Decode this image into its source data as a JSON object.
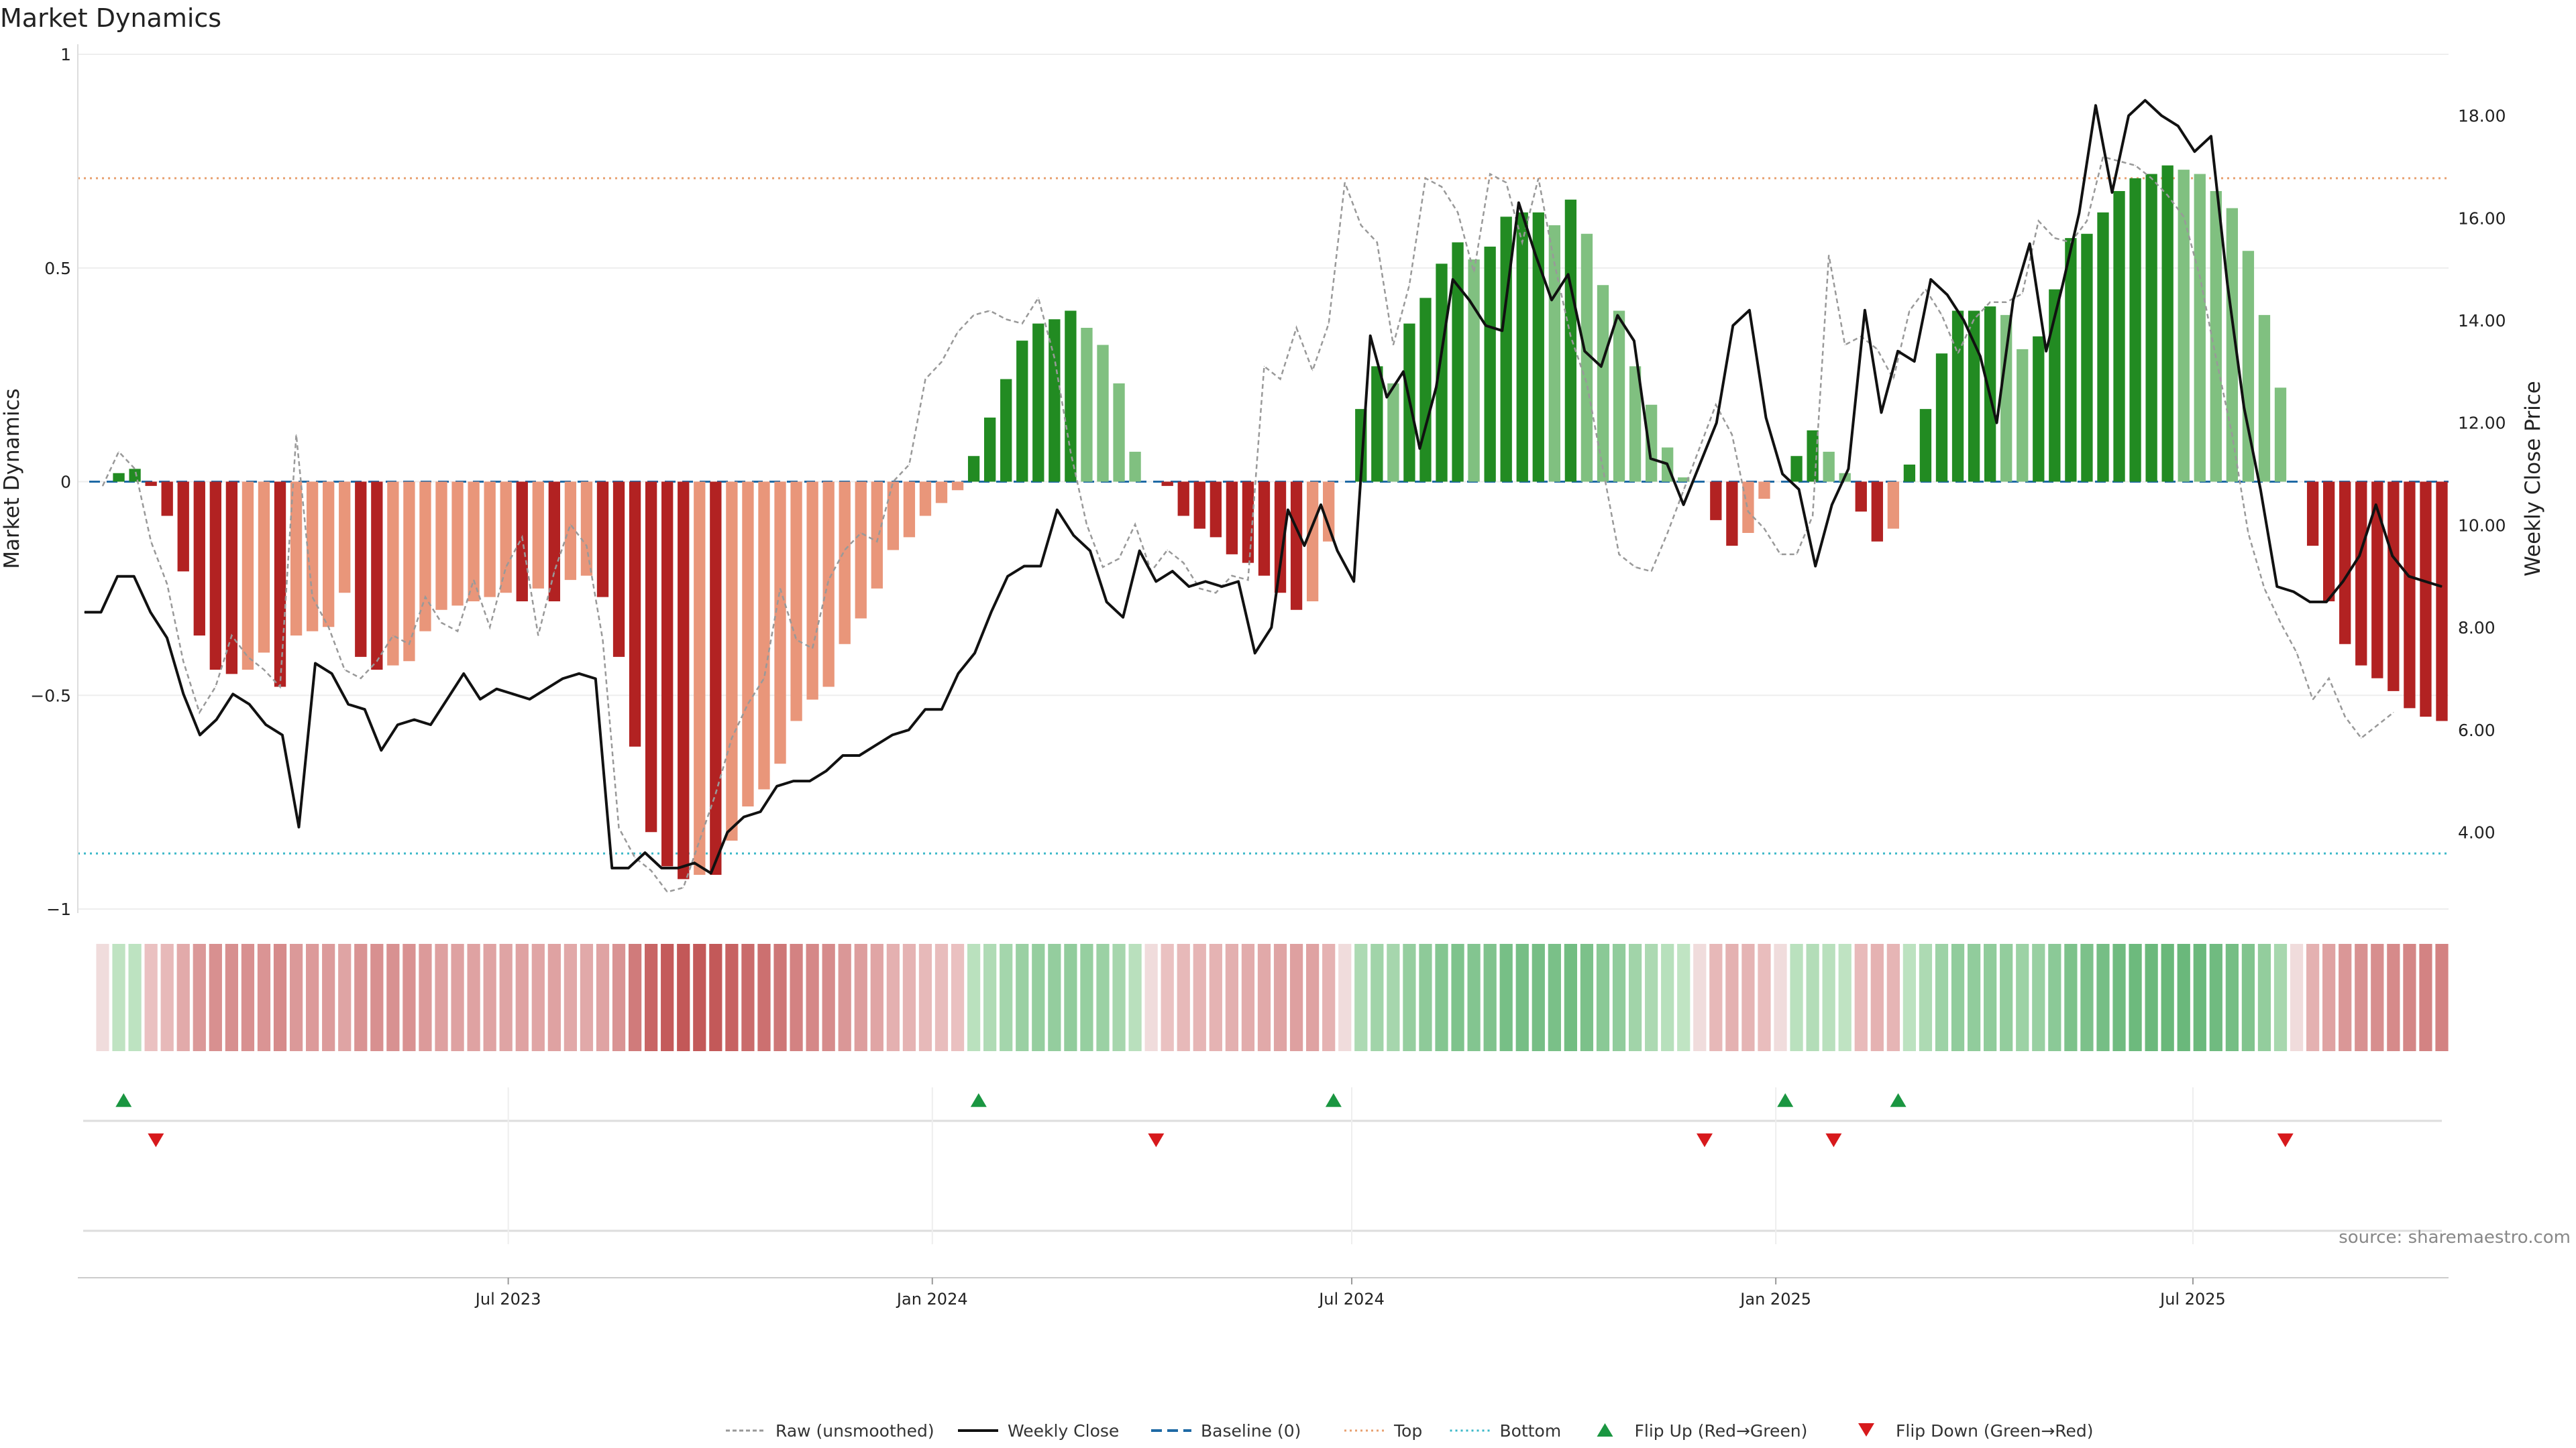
{
  "chart_data": {
    "type": "bar",
    "title": "Market Dynamics",
    "ylabel_left": "Market Dynamics",
    "ylabel_right": "Weekly Close Price",
    "ylim_left": [
      -1,
      1
    ],
    "ylim_right": [
      2.5,
      19.2
    ],
    "yticks_left": [
      {
        "v": 1,
        "label": "1"
      },
      {
        "v": 0.5,
        "label": "0.5"
      },
      {
        "v": 0,
        "label": "0"
      },
      {
        "v": -0.5,
        "label": "−0.5"
      },
      {
        "v": -1,
        "label": "−1"
      }
    ],
    "yticks_right": [
      {
        "v": 18,
        "label": "18.00"
      },
      {
        "v": 16,
        "label": "16.00"
      },
      {
        "v": 14,
        "label": "14.00"
      },
      {
        "v": 12,
        "label": "12.00"
      },
      {
        "v": 10,
        "label": "10.00"
      },
      {
        "v": 8,
        "label": "8.00"
      },
      {
        "v": 6,
        "label": "6.00"
      },
      {
        "v": 4,
        "label": "4.00"
      }
    ],
    "x_start": "2023-01-06",
    "x_step_days": 7,
    "x_ticks": [
      "2023-07-01",
      "2024-01-01",
      "2024-07-01",
      "2025-01-01",
      "2025-07-01"
    ],
    "x_tick_labels": [
      "Jul 2023",
      "Jan 2024",
      "Jul 2024",
      "Jan 2025",
      "Jul 2025"
    ],
    "top_level": 0.71,
    "bottom_level": -0.87,
    "grid": true,
    "series": [
      {
        "name": "Market Dynamics",
        "kind": "bar",
        "values": [
          0,
          0.02,
          0.03,
          -0.01,
          -0.08,
          -0.21,
          -0.36,
          -0.44,
          -0.45,
          -0.44,
          -0.4,
          -0.48,
          -0.36,
          -0.35,
          -0.34,
          -0.26,
          -0.41,
          -0.44,
          -0.43,
          -0.42,
          -0.35,
          -0.3,
          -0.29,
          -0.28,
          -0.27,
          -0.26,
          -0.28,
          -0.25,
          -0.28,
          -0.23,
          -0.22,
          -0.27,
          -0.41,
          -0.62,
          -0.82,
          -0.9,
          -0.93,
          -0.92,
          -0.92,
          -0.84,
          -0.76,
          -0.72,
          -0.66,
          -0.56,
          -0.51,
          -0.48,
          -0.38,
          -0.32,
          -0.25,
          -0.16,
          -0.13,
          -0.08,
          -0.05,
          -0.02,
          0.06,
          0.15,
          0.24,
          0.33,
          0.37,
          0.38,
          0.4,
          0.36,
          0.32,
          0.23,
          0.07,
          0,
          -0.01,
          -0.08,
          -0.11,
          -0.13,
          -0.17,
          -0.19,
          -0.22,
          -0.26,
          -0.3,
          -0.28,
          -0.14,
          0,
          0.17,
          0.27,
          0.23,
          0.37,
          0.43,
          0.51,
          0.56,
          0.52,
          0.55,
          0.62,
          0.63,
          0.63,
          0.6,
          0.66,
          0.58,
          0.46,
          0.4,
          0.27,
          0.18,
          0.08,
          0.01,
          0,
          -0.09,
          -0.15,
          -0.12,
          -0.04,
          0,
          0.06,
          0.12,
          0.07,
          0.02,
          -0.07,
          -0.14,
          -0.11,
          0.04,
          0.17,
          0.3,
          0.4,
          0.4,
          0.41,
          0.39,
          0.31,
          0.34,
          0.45,
          0.57,
          0.58,
          0.63,
          0.68,
          0.71,
          0.72,
          0.74,
          0.73,
          0.72,
          0.68,
          0.64,
          0.54,
          0.39,
          0.22,
          0,
          -0.15,
          -0.28,
          -0.38,
          -0.43,
          -0.46,
          -0.49,
          -0.53,
          -0.55,
          -0.56
        ]
      },
      {
        "name": "Raw (unsmoothed)",
        "kind": "line",
        "values": [
          -0.01,
          0.07,
          0.03,
          -0.14,
          -0.24,
          -0.42,
          -0.54,
          -0.48,
          -0.36,
          -0.41,
          -0.44,
          -0.48,
          0.11,
          -0.27,
          -0.34,
          -0.44,
          -0.46,
          -0.42,
          -0.36,
          -0.38,
          -0.27,
          -0.33,
          -0.35,
          -0.23,
          -0.34,
          -0.2,
          -0.13,
          -0.36,
          -0.21,
          -0.1,
          -0.15,
          -0.37,
          -0.81,
          -0.88,
          -0.91,
          -0.96,
          -0.95,
          -0.84,
          -0.73,
          -0.6,
          -0.52,
          -0.46,
          -0.25,
          -0.37,
          -0.39,
          -0.23,
          -0.16,
          -0.12,
          -0.14,
          0.0,
          0.04,
          0.24,
          0.28,
          0.35,
          0.39,
          0.4,
          0.38,
          0.37,
          0.43,
          0.29,
          0.07,
          -0.1,
          -0.2,
          -0.18,
          -0.1,
          -0.21,
          -0.16,
          -0.19,
          -0.25,
          -0.26,
          -0.22,
          -0.23,
          0.27,
          0.24,
          0.36,
          0.26,
          0.37,
          0.7,
          0.6,
          0.56,
          0.32,
          0.46,
          0.71,
          0.69,
          0.63,
          0.49,
          0.72,
          0.7,
          0.56,
          0.71,
          0.51,
          0.34,
          0.23,
          0.03,
          -0.17,
          -0.2,
          -0.21,
          -0.12,
          -0.02,
          0.08,
          0.18,
          0.11,
          -0.07,
          -0.11,
          -0.17,
          -0.17,
          -0.08,
          0.53,
          0.32,
          0.34,
          0.31,
          0.24,
          0.4,
          0.45,
          0.39,
          0.3,
          0.38,
          0.42,
          0.42,
          0.44,
          0.61,
          0.57,
          0.56,
          0.61,
          0.76,
          0.75,
          0.74,
          0.71,
          0.67,
          0.62,
          0.48,
          0.29,
          0.11,
          -0.12,
          -0.25,
          -0.33,
          -0.4,
          -0.51,
          -0.46,
          -0.55,
          -0.6,
          -0.57,
          -0.54
        ]
      },
      {
        "name": "Weekly Close",
        "kind": "line",
        "axis": "right",
        "values": [
          8.3,
          8.3,
          9.0,
          9.0,
          8.3,
          7.8,
          6.7,
          5.9,
          6.2,
          6.7,
          6.5,
          6.1,
          5.9,
          4.1,
          7.3,
          7.1,
          6.5,
          6.4,
          5.6,
          6.1,
          6.2,
          6.1,
          6.6,
          7.1,
          6.6,
          6.8,
          6.7,
          6.6,
          6.8,
          7.0,
          7.1,
          7.0,
          3.3,
          3.3,
          3.6,
          3.3,
          3.3,
          3.4,
          3.2,
          4.0,
          4.3,
          4.4,
          4.9,
          5.0,
          5.0,
          5.2,
          5.5,
          5.5,
          5.7,
          5.9,
          6.0,
          6.4,
          6.4,
          7.1,
          7.5,
          8.3,
          9.0,
          9.2,
          9.2,
          10.3,
          9.8,
          9.5,
          8.5,
          8.2,
          9.5,
          8.9,
          9.1,
          8.8,
          8.9,
          8.8,
          8.9,
          7.5,
          8.0,
          10.3,
          9.6,
          10.4,
          9.5,
          8.9,
          13.7,
          12.5,
          13.0,
          11.5,
          12.7,
          14.8,
          14.4,
          13.9,
          13.8,
          16.3,
          15.3,
          14.4,
          14.9,
          13.4,
          13.1,
          14.1,
          13.6,
          11.3,
          11.2,
          10.4,
          11.2,
          12.0,
          13.9,
          14.2,
          12.1,
          11.0,
          10.7,
          9.2,
          10.4,
          11.1,
          14.2,
          12.2,
          13.4,
          13.2,
          14.8,
          14.5,
          14.0,
          13.3,
          12.0,
          14.4,
          15.5,
          13.4,
          14.7,
          16.1,
          18.2,
          16.5,
          18.0,
          18.3,
          18.0,
          17.8,
          17.3,
          17.6,
          14.7,
          12.3,
          10.7,
          8.8,
          8.7,
          8.5,
          8.5,
          8.9,
          9.4,
          10.4,
          9.4,
          9.0,
          8.9,
          8.8
        ]
      },
      {
        "name": "Baseline (0)",
        "kind": "hline",
        "value": 0
      },
      {
        "name": "Top",
        "kind": "hline",
        "value": 0.71
      },
      {
        "name": "Bottom",
        "kind": "hline",
        "value": -0.87
      },
      {
        "name": "Flip Up (Red→Green)",
        "kind": "marker",
        "indices": [
          1,
          54,
          76,
          104,
          111
        ]
      },
      {
        "name": "Flip Down (Green→Red)",
        "kind": "marker",
        "indices": [
          3,
          65,
          99,
          107,
          135
        ]
      }
    ],
    "colors": {
      "green_strong": "#228b22",
      "green_light": "#80c080",
      "red_strong": "#b22222",
      "red_light": "#e9967a",
      "raw": "#999999",
      "close": "#111111",
      "baseline": "#1f6aa5",
      "top": "#e8a070",
      "bottom": "#3bb8c8",
      "flip_up": "#1a9641",
      "flip_down": "#d7191c"
    },
    "source_note": "source: sharemaestro.com",
    "legend_position": "bottom-center"
  }
}
